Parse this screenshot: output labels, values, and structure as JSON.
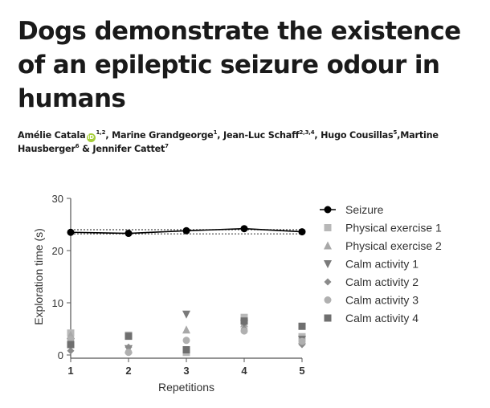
{
  "article": {
    "title": "Dogs demonstrate the existence of an epileptic seizure odour in humans",
    "orcid_badge": "iD",
    "authors": [
      {
        "name": "Amélie Catala",
        "sup": "1,2",
        "orcid": true,
        "sep": ", "
      },
      {
        "name": "Marine Grandgeorge",
        "sup": "1",
        "orcid": false,
        "sep": ", "
      },
      {
        "name": "Jean-Luc Schaff",
        "sup": "2,3,4",
        "orcid": false,
        "sep": ", "
      },
      {
        "name": "Hugo Cousillas",
        "sup": "5",
        "orcid": false,
        "sep": ","
      },
      {
        "name": "Martine Hausberger",
        "sup": "6",
        "orcid": false,
        "sep": " & "
      },
      {
        "name": "Jennifer Cattet",
        "sup": "7",
        "orcid": false,
        "sep": ""
      }
    ]
  },
  "chart_data": {
    "type": "scatter",
    "xlabel": "Repetitions",
    "ylabel": "Exploration time (s)",
    "x": [
      1,
      2,
      3,
      4,
      5
    ],
    "xlim": [
      1,
      5
    ],
    "ylim": [
      0,
      30
    ],
    "xticks": [
      "1",
      "2",
      "3",
      "4",
      "5"
    ],
    "yticks": [
      "0",
      "10",
      "20",
      "30"
    ],
    "grid": false,
    "legend_position": "right",
    "reference_band": {
      "low": 23.2,
      "high": 24.0,
      "style": "dotted"
    },
    "series": [
      {
        "name": "Seizure",
        "marker": "circle",
        "color": "#000000",
        "line": true,
        "values": [
          23.5,
          23.3,
          23.8,
          24.2,
          23.6
        ]
      },
      {
        "name": "Physical exercise 1",
        "marker": "square",
        "color": "#b8b8b8",
        "line": false,
        "values": [
          4.2,
          3.8,
          0.5,
          7.2,
          3.5
        ]
      },
      {
        "name": "Physical exercise 2",
        "marker": "triangle-up",
        "color": "#a8a8a8",
        "line": false,
        "values": [
          3.8,
          1.0,
          4.8,
          6.0,
          2.8
        ]
      },
      {
        "name": "Calm activity 1",
        "marker": "triangle-down",
        "color": "#7a7a7a",
        "line": false,
        "values": [
          2.5,
          1.2,
          7.8,
          6.0,
          3.0
        ]
      },
      {
        "name": "Calm activity 2",
        "marker": "diamond",
        "color": "#8a8a8a",
        "line": false,
        "values": [
          0.8,
          1.5,
          1.0,
          5.0,
          2.0
        ]
      },
      {
        "name": "Calm activity 3",
        "marker": "circle",
        "color": "#b0b0b0",
        "line": false,
        "values": [
          3.0,
          0.5,
          2.8,
          4.6,
          2.6
        ]
      },
      {
        "name": "Calm activity 4",
        "marker": "square",
        "color": "#6f6f6f",
        "line": false,
        "values": [
          2.0,
          3.6,
          1.0,
          6.5,
          5.5
        ]
      }
    ]
  }
}
